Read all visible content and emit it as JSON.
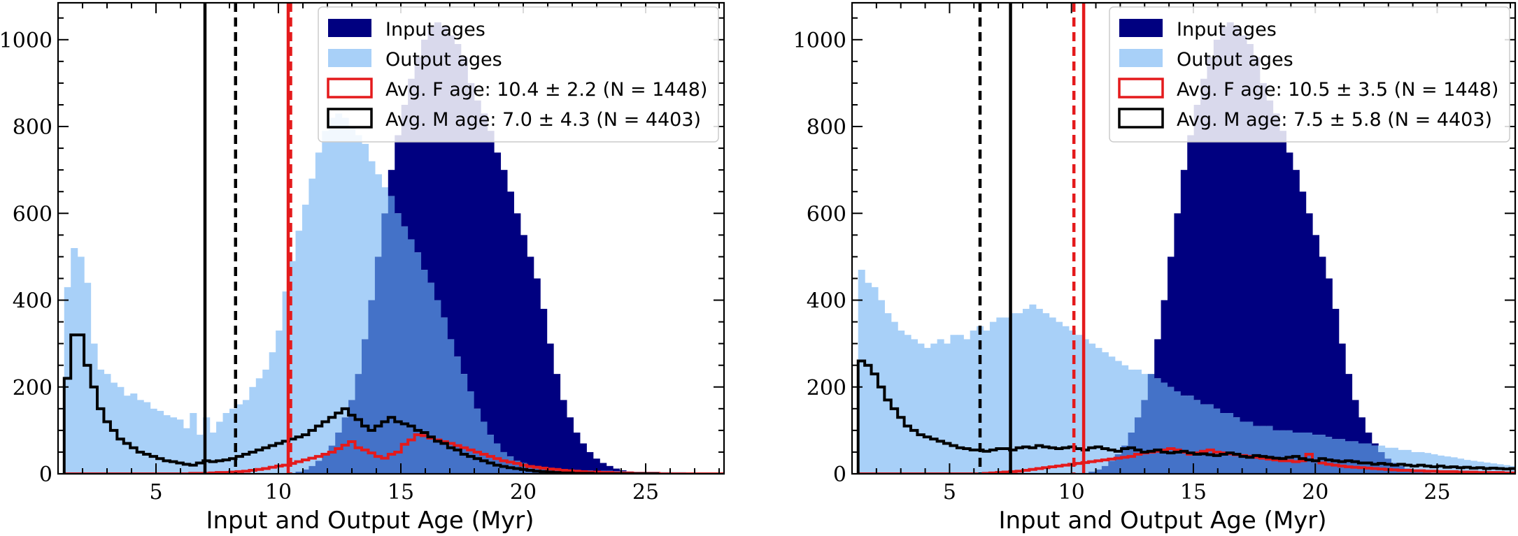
{
  "chart_data": [
    {
      "type": "bar",
      "xlabel": "Input and Output Age (Myr)",
      "ylabel": "",
      "xlim": [
        1.0,
        28.2
      ],
      "ylim": [
        0,
        1085
      ],
      "xticks": [
        5,
        10,
        15,
        20,
        25
      ],
      "yticks": [
        0,
        200,
        400,
        600,
        800,
        1000
      ],
      "bin_start": 1.25,
      "bin_width": 0.27,
      "legend_position": "top-right",
      "colors": {
        "input": "#000080",
        "output": "#a8d0f8",
        "overlap": "#4472c8",
        "f": "#e41a1c",
        "m": "#000000"
      },
      "series": [
        {
          "name": "Input ages",
          "kind": "filled",
          "values": [
            0,
            0,
            0,
            0,
            0,
            0,
            0,
            0,
            0,
            0,
            0,
            0,
            0,
            0,
            0,
            0,
            0,
            0,
            0,
            0,
            0,
            0,
            0,
            0,
            0,
            0,
            0,
            0,
            0,
            0,
            0,
            0,
            0,
            0,
            0,
            5,
            10,
            18,
            30,
            45,
            65,
            95,
            130,
            170,
            230,
            310,
            400,
            500,
            600,
            700,
            780,
            850,
            910,
            960,
            1000,
            1030,
            1040,
            1030,
            1010,
            990,
            960,
            900,
            860,
            830,
            790,
            740,
            700,
            650,
            600,
            550,
            500,
            450,
            380,
            300,
            230,
            170,
            130,
            95,
            70,
            50,
            35,
            25,
            18,
            12,
            8,
            5,
            3,
            2,
            1,
            0,
            0,
            0,
            0,
            0,
            0,
            0,
            0,
            0,
            0
          ]
        },
        {
          "name": "Output ages",
          "kind": "filled",
          "values": [
            430,
            520,
            500,
            440,
            300,
            240,
            230,
            210,
            200,
            180,
            185,
            170,
            165,
            150,
            145,
            135,
            130,
            125,
            105,
            140,
            90,
            130,
            95,
            120,
            140,
            150,
            160,
            170,
            200,
            220,
            240,
            280,
            330,
            420,
            490,
            560,
            620,
            680,
            740,
            790,
            820,
            830,
            820,
            800,
            780,
            760,
            720,
            690,
            660,
            640,
            600,
            570,
            540,
            510,
            470,
            440,
            400,
            360,
            310,
            270,
            230,
            190,
            150,
            120,
            90,
            70,
            50,
            40,
            30,
            25,
            20,
            15,
            14,
            12,
            10,
            10,
            9,
            9,
            8,
            8,
            7,
            7,
            7,
            6,
            6,
            6,
            5,
            5,
            5,
            5,
            4,
            4,
            4,
            4,
            3,
            3,
            3,
            3,
            3,
            3,
            3,
            3,
            3,
            3,
            3,
            3,
            3,
            2,
            2,
            2,
            2,
            2,
            2,
            2,
            2,
            2,
            2,
            2,
            2,
            2,
            2,
            2,
            2,
            2,
            2,
            2,
            2,
            2,
            2,
            2,
            2,
            2,
            2,
            2,
            2,
            2,
            2,
            2,
            2,
            2,
            2,
            2,
            2,
            2,
            2,
            2,
            2,
            2,
            2,
            2
          ]
        },
        {
          "name": "Avg. F age: 10.4 ± 2.2 (N = 1448)",
          "kind": "step",
          "color": "#e41a1c",
          "values": [
            0,
            0,
            0,
            0,
            0,
            0,
            0,
            0,
            0,
            0,
            0,
            0,
            0,
            0,
            0,
            0,
            0,
            0,
            0,
            1,
            1,
            1,
            2,
            3,
            3,
            4,
            5,
            6,
            8,
            10,
            12,
            15,
            18,
            20,
            24,
            28,
            32,
            36,
            40,
            45,
            50,
            58,
            66,
            74,
            60,
            55,
            48,
            40,
            36,
            45,
            50,
            68,
            78,
            90,
            88,
            82,
            78,
            74,
            70,
            65,
            60,
            55,
            50,
            45,
            40,
            35,
            30,
            27,
            24,
            20,
            17,
            15,
            13,
            11,
            10,
            8,
            7,
            6,
            5,
            4,
            4,
            3,
            3,
            2,
            2,
            2,
            1,
            1,
            1,
            1,
            0,
            0,
            0,
            0,
            0,
            0,
            0,
            0,
            0,
            0
          ]
        },
        {
          "name": "Avg. M age: 7.0 ± 4.3 (N = 4403)",
          "kind": "step",
          "color": "#000000",
          "values": [
            220,
            320,
            320,
            250,
            200,
            150,
            120,
            100,
            80,
            70,
            60,
            50,
            45,
            40,
            35,
            30,
            28,
            25,
            22,
            20,
            25,
            30,
            28,
            30,
            32,
            35,
            40,
            45,
            50,
            55,
            60,
            65,
            70,
            75,
            80,
            85,
            90,
            100,
            110,
            120,
            130,
            140,
            150,
            135,
            125,
            110,
            100,
            110,
            120,
            130,
            120,
            115,
            110,
            100,
            95,
            85,
            75,
            70,
            60,
            55,
            45,
            40,
            35,
            30,
            25,
            20,
            17,
            14,
            12,
            10,
            8,
            6,
            5,
            4,
            3,
            2,
            2,
            1,
            1,
            1,
            0,
            0,
            0,
            0,
            0,
            0,
            0,
            0,
            0,
            0
          ]
        }
      ],
      "vlines": [
        {
          "x": 10.4,
          "style": "solid",
          "color": "#e41a1c"
        },
        {
          "x": 10.5,
          "style": "dashed",
          "color": "#e41a1c"
        },
        {
          "x": 7.0,
          "style": "solid",
          "color": "#000000"
        },
        {
          "x": 8.25,
          "style": "dashed",
          "color": "#000000"
        }
      ],
      "legend": [
        "Input ages",
        "Output ages",
        "Avg. F age: 10.4 ± 2.2 (N = 1448)",
        "Avg. M age: 7.0 ± 4.3 (N = 4403)"
      ]
    },
    {
      "type": "bar",
      "xlabel": "Input and Output Age (Myr)",
      "ylabel": "",
      "xlim": [
        1.0,
        28.2
      ],
      "ylim": [
        0,
        1085
      ],
      "xticks": [
        5,
        10,
        15,
        20,
        25
      ],
      "yticks": [
        0,
        200,
        400,
        600,
        800,
        1000
      ],
      "bin_start": 1.25,
      "bin_width": 0.27,
      "legend_position": "top-right",
      "colors": {
        "input": "#000080",
        "output": "#a8d0f8",
        "overlap": "#4472c8",
        "f": "#e41a1c",
        "m": "#000000"
      },
      "series": [
        {
          "name": "Input ages",
          "kind": "filled",
          "values": [
            0,
            0,
            0,
            0,
            0,
            0,
            0,
            0,
            0,
            0,
            0,
            0,
            0,
            0,
            0,
            0,
            0,
            0,
            0,
            0,
            0,
            0,
            0,
            0,
            0,
            0,
            0,
            0,
            0,
            0,
            0,
            0,
            0,
            0,
            0,
            5,
            10,
            18,
            30,
            45,
            65,
            95,
            130,
            170,
            230,
            310,
            400,
            500,
            600,
            700,
            780,
            850,
            910,
            960,
            1000,
            1030,
            1040,
            1030,
            1010,
            990,
            960,
            900,
            860,
            830,
            790,
            740,
            700,
            650,
            600,
            550,
            500,
            450,
            380,
            300,
            230,
            170,
            130,
            95,
            70,
            50,
            35,
            25,
            18,
            12,
            8,
            5,
            3,
            2,
            1,
            0,
            0,
            0,
            0,
            0,
            0,
            0,
            0,
            0,
            0
          ]
        },
        {
          "name": "Output ages",
          "kind": "filled",
          "values": [
            470,
            440,
            430,
            400,
            370,
            350,
            330,
            320,
            310,
            300,
            290,
            300,
            310,
            300,
            320,
            320,
            310,
            330,
            340,
            330,
            350,
            360,
            360,
            370,
            370,
            380,
            390,
            380,
            370,
            360,
            350,
            340,
            330,
            320,
            310,
            300,
            290,
            280,
            270,
            260,
            250,
            240,
            240,
            230,
            230,
            220,
            210,
            200,
            190,
            180,
            180,
            170,
            160,
            160,
            150,
            140,
            140,
            130,
            120,
            120,
            110,
            110,
            110,
            100,
            100,
            100,
            95,
            95,
            95,
            90,
            90,
            85,
            80,
            80,
            75,
            75,
            70,
            70,
            65,
            65,
            60,
            60,
            55,
            55,
            50,
            50,
            48,
            45,
            42,
            40,
            38,
            35,
            32,
            30,
            28,
            26,
            24,
            22,
            20,
            18,
            16,
            15,
            14,
            13,
            12,
            11,
            10,
            10,
            9,
            9,
            8,
            8,
            7,
            7,
            7,
            6,
            6,
            6,
            5,
            5,
            5,
            5,
            4,
            4,
            4,
            4,
            3,
            3,
            3,
            3,
            3,
            3,
            3,
            3,
            3,
            3,
            3,
            3,
            3,
            3,
            3,
            2,
            2,
            2,
            2,
            2,
            2,
            2,
            2
          ]
        },
        {
          "name": "Avg. F age: 10.5 ± 3.5 (N = 1448)",
          "kind": "step",
          "color": "#e41a1c",
          "values": [
            0,
            0,
            0,
            0,
            0,
            0,
            0,
            0,
            0,
            0,
            0,
            0,
            0,
            0,
            0,
            0,
            0,
            0,
            0,
            1,
            2,
            3,
            4,
            5,
            6,
            8,
            10,
            12,
            14,
            16,
            18,
            20,
            22,
            24,
            26,
            28,
            30,
            32,
            34,
            36,
            38,
            40,
            45,
            48,
            50,
            52,
            55,
            58,
            55,
            50,
            45,
            48,
            52,
            55,
            50,
            48,
            46,
            44,
            42,
            40,
            38,
            36,
            34,
            32,
            30,
            30,
            28,
            30,
            45,
            30,
            25,
            22,
            20,
            18,
            16,
            15,
            14,
            13,
            12,
            11,
            10,
            9,
            8,
            8,
            7,
            7,
            6,
            6,
            5,
            5,
            5,
            4,
            4,
            4,
            3,
            3,
            3,
            3,
            2,
            2,
            2,
            2,
            2,
            1,
            1,
            1,
            1,
            1,
            1,
            1,
            1,
            1,
            1,
            0,
            0,
            0,
            0,
            0,
            0,
            0,
            0,
            0,
            0,
            0,
            0,
            0,
            0,
            0,
            0,
            0,
            0,
            0,
            0,
            0,
            0,
            0,
            0,
            0,
            0,
            0,
            0,
            0,
            0,
            0,
            0,
            0,
            0,
            0,
            0
          ]
        },
        {
          "name": "Avg. M age: 7.5 ± 5.8 (N = 4403)",
          "kind": "step",
          "color": "#000000",
          "values": [
            260,
            250,
            230,
            200,
            170,
            150,
            130,
            110,
            100,
            90,
            85,
            80,
            75,
            70,
            65,
            60,
            58,
            55,
            55,
            52,
            55,
            58,
            58,
            55,
            60,
            62,
            60,
            65,
            62,
            60,
            58,
            60,
            62,
            58,
            55,
            60,
            62,
            58,
            55,
            52,
            58,
            60,
            55,
            50,
            52,
            55,
            50,
            48,
            50,
            52,
            48,
            45,
            46,
            44,
            42,
            45,
            48,
            45,
            40,
            38,
            42,
            40,
            38,
            36,
            35,
            38,
            40,
            35,
            32,
            30,
            35,
            32,
            30,
            28,
            30,
            28,
            25,
            25,
            22,
            24,
            22,
            20,
            22,
            20,
            18,
            20,
            18,
            16,
            18,
            15,
            16,
            14,
            15,
            13,
            14,
            12,
            13,
            12,
            11,
            12,
            10,
            11,
            10,
            10,
            9,
            9,
            8,
            8,
            8,
            7,
            7,
            7,
            6,
            6,
            6,
            6,
            5,
            5,
            5,
            5,
            5,
            4,
            4,
            4,
            4,
            4,
            4,
            3,
            3,
            3,
            3,
            3,
            3,
            3,
            3,
            3,
            3,
            3,
            3,
            2,
            2,
            2,
            2,
            2,
            2,
            2,
            2,
            2,
            2,
            2
          ]
        }
      ],
      "vlines": [
        {
          "x": 10.5,
          "style": "solid",
          "color": "#e41a1c"
        },
        {
          "x": 10.1,
          "style": "dashed",
          "color": "#e41a1c"
        },
        {
          "x": 7.5,
          "style": "solid",
          "color": "#000000"
        },
        {
          "x": 6.25,
          "style": "dashed",
          "color": "#000000"
        }
      ],
      "legend": [
        "Input ages",
        "Output ages",
        "Avg. F age: 10.5 ± 3.5 (N = 1448)",
        "Avg. M age: 7.5 ± 5.8 (N = 4403)"
      ]
    }
  ]
}
